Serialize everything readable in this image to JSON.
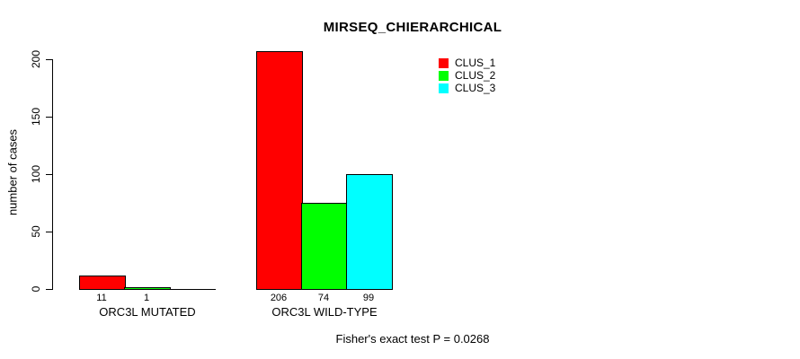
{
  "title": "MIRSEQ_CHIERARCHICAL",
  "footer": "Fisher's exact test P = 0.0268",
  "chart_data": {
    "type": "bar",
    "title": "MIRSEQ_CHIERARCHICAL",
    "xlabel": "",
    "ylabel": "number of cases",
    "ylim": [
      0,
      200
    ],
    "yticks": [
      0,
      50,
      100,
      150,
      200
    ],
    "grid": false,
    "legend_position": "top-right",
    "categories": [
      "ORC3L MUTATED",
      "ORC3L WILD-TYPE"
    ],
    "series": [
      {
        "name": "CLUS_1",
        "color": "#FF0000",
        "values": [
          11,
          206
        ]
      },
      {
        "name": "CLUS_2",
        "color": "#00FF00",
        "values": [
          1,
          74
        ]
      },
      {
        "name": "CLUS_3",
        "color": "#00FFFF",
        "values": [
          0,
          99
        ]
      }
    ],
    "bar_labels": [
      [
        "11",
        "1",
        ""
      ],
      [
        "206",
        "74",
        "99"
      ]
    ],
    "annotation": "Fisher's exact test P = 0.0268"
  }
}
